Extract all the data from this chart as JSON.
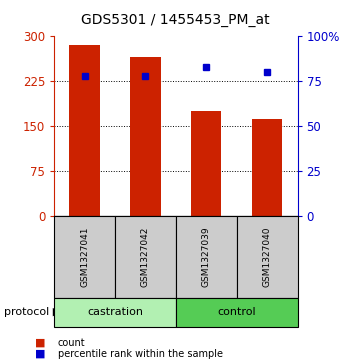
{
  "title": "GDS5301 / 1455453_PM_at",
  "samples": [
    "GSM1327041",
    "GSM1327042",
    "GSM1327039",
    "GSM1327040"
  ],
  "bar_values": [
    285,
    265,
    175,
    162
  ],
  "percentile_values": [
    78,
    78,
    83,
    80
  ],
  "bar_color": "#cc2200",
  "marker_color": "#0000cc",
  "left_yticks": [
    0,
    75,
    150,
    225,
    300
  ],
  "right_yticks": [
    0,
    25,
    50,
    75,
    100
  ],
  "left_ylim": [
    0,
    300
  ],
  "right_ylim": [
    0,
    100
  ],
  "grid_lines": [
    75,
    150,
    225
  ],
  "groups": [
    {
      "label": "castration",
      "indices": [
        0,
        1
      ],
      "color": "#b2f0b2"
    },
    {
      "label": "control",
      "indices": [
        2,
        3
      ],
      "color": "#55cc55"
    }
  ],
  "legend_items": [
    {
      "label": "count",
      "color": "#cc2200"
    },
    {
      "label": "percentile rank within the sample",
      "color": "#0000cc"
    }
  ],
  "bar_width": 0.5,
  "left_axis_color": "#cc2200",
  "right_axis_color": "#0000cc",
  "bg_color": "#ffffff",
  "plot_bg": "#ffffff",
  "gray_box_color": "#cccccc"
}
